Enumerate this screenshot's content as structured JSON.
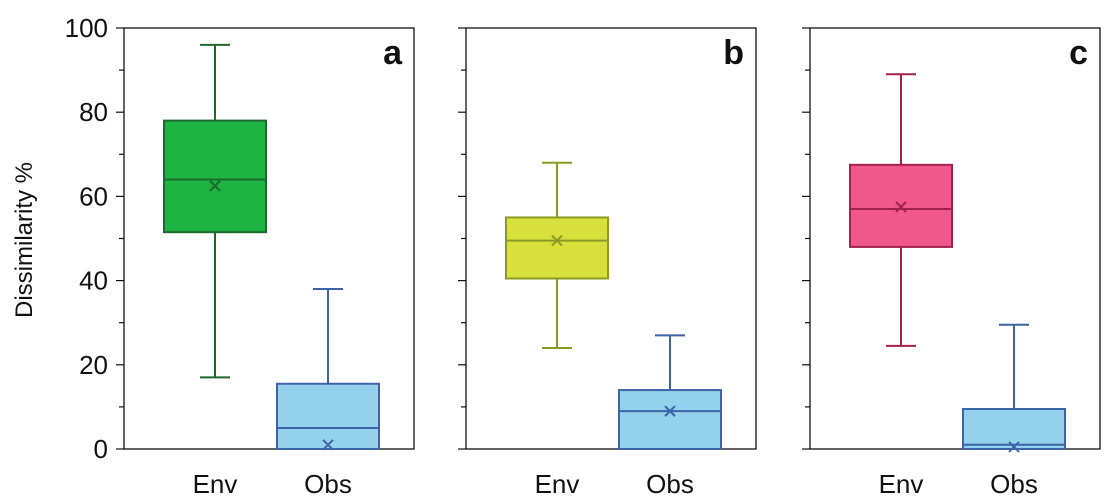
{
  "chart_data": {
    "type": "box",
    "ylabel": "Dissimilarity %",
    "ylim": [
      0,
      100
    ],
    "yticks": [
      "0",
      "20",
      "40",
      "60",
      "80",
      "100"
    ],
    "grid": false,
    "categories": [
      "Env",
      "Obs"
    ],
    "panels": [
      {
        "letter": "a",
        "boxes": [
          {
            "category": "Env",
            "min": 17,
            "q1": 51.5,
            "median": 64,
            "q3": 78,
            "max": 96,
            "mean": 62.5,
            "fill": "#1db443",
            "stroke": "#1c6b2d"
          },
          {
            "category": "Obs",
            "min": 0,
            "q1": 0,
            "median": 5,
            "q3": 15.5,
            "max": 38,
            "mean": 1,
            "fill": "#93d1ec",
            "stroke": "#3d64a6"
          }
        ]
      },
      {
        "letter": "b",
        "boxes": [
          {
            "category": "Env",
            "min": 24,
            "q1": 40.5,
            "median": 49.5,
            "q3": 55,
            "max": 68,
            "mean": 49.5,
            "fill": "#d7e03d",
            "stroke": "#8b9a21"
          },
          {
            "category": "Obs",
            "min": 0,
            "q1": 0,
            "median": 9,
            "q3": 14,
            "max": 27,
            "mean": 9,
            "fill": "#93d1ec",
            "stroke": "#3d64a6"
          }
        ]
      },
      {
        "letter": "c",
        "boxes": [
          {
            "category": "Env",
            "min": 24.5,
            "q1": 48,
            "median": 57,
            "q3": 67.5,
            "max": 89,
            "mean": 57.5,
            "fill": "#f0588b",
            "stroke": "#a3204f"
          },
          {
            "category": "Obs",
            "min": 0,
            "q1": 0,
            "median": 1,
            "q3": 9.5,
            "max": 29.5,
            "mean": 0.5,
            "fill": "#93d1ec",
            "stroke": "#3d64a6"
          }
        ]
      }
    ]
  }
}
